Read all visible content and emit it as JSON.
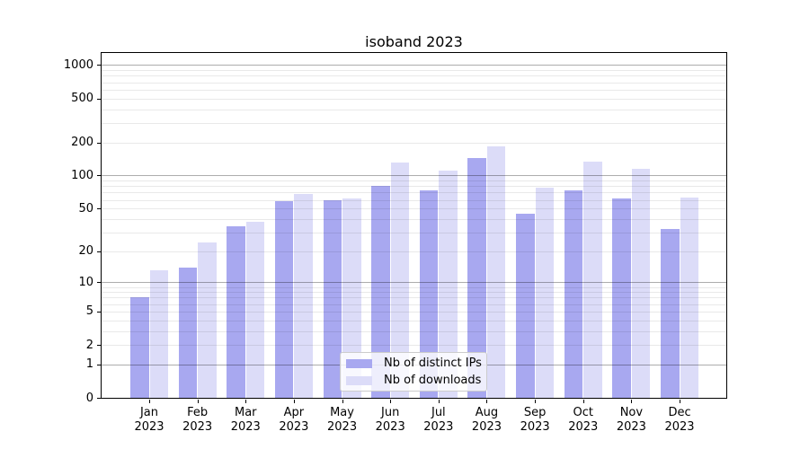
{
  "chart_data": {
    "type": "bar",
    "title": "isoband 2023",
    "xlabel": "",
    "ylabel": "",
    "categories": [
      "Jan 2023",
      "Feb 2023",
      "Mar 2023",
      "Apr 2023",
      "May 2023",
      "Jun 2023",
      "Jul 2023",
      "Aug 2023",
      "Sep 2023",
      "Oct 2023",
      "Nov 2023",
      "Dec 2023"
    ],
    "series": [
      {
        "name": "Nb of distinct IPs",
        "color": "#a8a8f0",
        "values": [
          7,
          14,
          34,
          58,
          59,
          80,
          73,
          143,
          45,
          73,
          62,
          32
        ]
      },
      {
        "name": "Nb of downloads",
        "color": "#dcdcf8",
        "values": [
          13,
          24,
          38,
          68,
          62,
          131,
          110,
          183,
          78,
          134,
          115,
          63
        ]
      }
    ],
    "yscale": "log1p",
    "ylim": [
      0,
      1300
    ],
    "ytick_values": [
      0,
      1,
      2,
      5,
      10,
      20,
      50,
      100,
      200,
      500,
      1000
    ],
    "grid": {
      "enabled": true,
      "major_values": [
        1,
        10,
        100,
        1000
      ],
      "minor_values": [
        2,
        3,
        4,
        5,
        6,
        7,
        8,
        9,
        20,
        30,
        40,
        50,
        60,
        70,
        80,
        90,
        200,
        300,
        400,
        500,
        600,
        700,
        800,
        900
      ]
    },
    "legend_position": "lower center"
  }
}
